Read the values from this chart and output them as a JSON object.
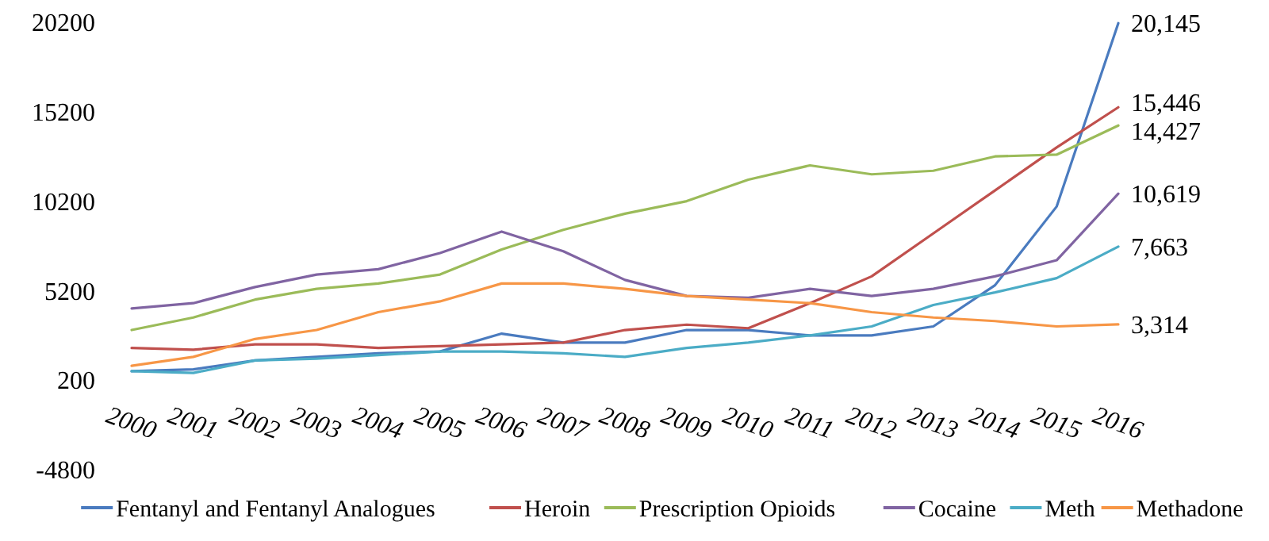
{
  "chart_data": {
    "type": "line",
    "categories": [
      "2000",
      "2001",
      "2002",
      "2003",
      "2004",
      "2005",
      "2006",
      "2007",
      "2008",
      "2009",
      "2010",
      "2011",
      "2012",
      "2013",
      "2014",
      "2015",
      "2016"
    ],
    "ylim": [
      -4800,
      20200
    ],
    "yticks": [
      -4800,
      200,
      5200,
      10200,
      15200,
      20200
    ],
    "grid": false,
    "legend": "bottom",
    "marker": "none",
    "line_style": "solid",
    "series": [
      {
        "name": "Fentanyl and Fentanyl Analogues",
        "color": "#4a7bbf",
        "values": [
          700,
          800,
          1300,
          1500,
          1700,
          1800,
          2800,
          2300,
          2300,
          3000,
          3000,
          2700,
          2700,
          3200,
          5500,
          9900,
          20145
        ],
        "value_labels": [
          null,
          null,
          null,
          null,
          null,
          null,
          null,
          null,
          null,
          null,
          null,
          null,
          null,
          null,
          null,
          null,
          "20,145"
        ]
      },
      {
        "name": "Heroin",
        "color": "#c0504d",
        "values": [
          2000,
          1900,
          2200,
          2200,
          2000,
          2100,
          2200,
          2300,
          3000,
          3300,
          3100,
          4500,
          6000,
          8400,
          10800,
          13200,
          15446
        ],
        "value_labels": [
          null,
          null,
          null,
          null,
          null,
          null,
          null,
          null,
          null,
          null,
          null,
          null,
          null,
          null,
          null,
          null,
          "15,446"
        ]
      },
      {
        "name": "Prescription Opioids",
        "color": "#9bbb59",
        "values": [
          3000,
          3700,
          4700,
          5300,
          5600,
          6100,
          7500,
          8600,
          9500,
          10200,
          11400,
          12200,
          11700,
          11900,
          12700,
          12800,
          14427
        ],
        "value_labels": [
          null,
          null,
          null,
          null,
          null,
          null,
          null,
          null,
          null,
          null,
          null,
          null,
          null,
          null,
          null,
          null,
          "14,427"
        ]
      },
      {
        "name": "Cocaine",
        "color": "#8064a2",
        "values": [
          4200,
          4500,
          5400,
          6100,
          6400,
          7300,
          8500,
          7400,
          5800,
          4900,
          4800,
          5300,
          4900,
          5300,
          6000,
          6900,
          10619
        ],
        "value_labels": [
          null,
          null,
          null,
          null,
          null,
          null,
          null,
          null,
          null,
          null,
          null,
          null,
          null,
          null,
          null,
          null,
          "10,619"
        ]
      },
      {
        "name": "Meth",
        "color": "#4bacc6",
        "values": [
          700,
          600,
          1300,
          1400,
          1600,
          1800,
          1800,
          1700,
          1500,
          2000,
          2300,
          2700,
          3200,
          4400,
          5100,
          5900,
          7663
        ],
        "value_labels": [
          null,
          null,
          null,
          null,
          null,
          null,
          null,
          null,
          null,
          null,
          null,
          null,
          null,
          null,
          null,
          null,
          "7,663"
        ]
      },
      {
        "name": "Methadone",
        "color": "#f79646",
        "values": [
          1000,
          1500,
          2500,
          3000,
          4000,
          4600,
          5600,
          5600,
          5300,
          4900,
          4700,
          4500,
          4000,
          3700,
          3500,
          3200,
          3314
        ],
        "value_labels": [
          null,
          null,
          null,
          null,
          null,
          null,
          null,
          null,
          null,
          null,
          null,
          null,
          null,
          null,
          null,
          null,
          "3,314"
        ]
      }
    ]
  }
}
